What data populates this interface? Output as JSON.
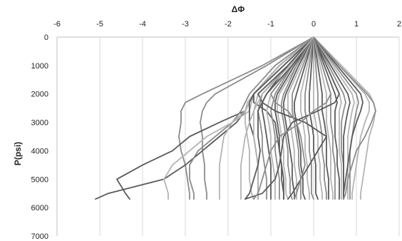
{
  "chart_data": {
    "type": "line",
    "title": "",
    "xlabel": "ΔΦ",
    "ylabel": "P(psi)",
    "x_axis_position": "top",
    "y_axis_inverted": true,
    "xlim": [
      -6,
      2
    ],
    "ylim": [
      0,
      7000
    ],
    "xticks": [
      "-6",
      "-5",
      "-4",
      "-3",
      "-2",
      "-1",
      "0",
      "1",
      "2"
    ],
    "yticks": [
      "0",
      "1000",
      "2000",
      "3000",
      "4000",
      "5000",
      "6000",
      "7000"
    ],
    "grid": "vertical",
    "legend": "none",
    "colors": {
      "dark": "#5a5a5a",
      "mid": "#8c8c8c",
      "light": "#b4b4b4",
      "grid": "#d9d9d9"
    },
    "y_samples": [
      0,
      1000,
      2000,
      2300,
      2600,
      3000,
      3500,
      4000,
      4500,
      5000,
      5500,
      5700
    ],
    "series": [
      {
        "shade": "mid",
        "x": [
          0,
          -1.2,
          -2.6,
          -3.0,
          -3.1,
          -3.1,
          -3.15,
          -3.1,
          -3.0,
          -2.95,
          -2.9,
          -2.9
        ]
      },
      {
        "shade": "mid",
        "x": [
          0,
          -1.1,
          -2.3,
          -2.5,
          -2.6,
          -2.65,
          -2.6,
          -2.6,
          -2.55,
          -2.55,
          -2.5,
          -2.5
        ]
      },
      {
        "shade": "dark",
        "x": [
          0,
          -0.8,
          -1.4,
          -1.5,
          -1.6,
          -2.2,
          -2.9,
          -3.3,
          -4.0,
          -4.6,
          -4.4,
          -4.3
        ]
      },
      {
        "shade": "dark",
        "x": [
          0,
          -0.8,
          -1.4,
          -1.5,
          -1.6,
          -1.8,
          -2.2,
          -2.6,
          -3.0,
          -3.5,
          -4.8,
          -5.1
        ]
      },
      {
        "shade": "mid",
        "x": [
          0,
          -0.9,
          -1.5,
          -1.6,
          -1.7,
          -1.9,
          -2.3,
          -2.7,
          -2.9,
          -2.9,
          -2.8,
          -2.8
        ]
      },
      {
        "shade": "light",
        "x": [
          0,
          -0.8,
          -1.4,
          -1.45,
          -1.5,
          -1.9,
          -2.1,
          -2.15,
          -2.2,
          -2.2,
          -2.2,
          -2.2
        ]
      },
      {
        "shade": "light",
        "x": [
          0,
          -0.7,
          -1.4,
          -1.5,
          -1.6,
          -1.9,
          -2.5,
          -2.9,
          -3.3,
          -3.5,
          -3.4,
          -3.4
        ]
      },
      {
        "shade": "dark",
        "x": [
          0,
          -0.7,
          -1.4,
          -1.4,
          -1.1,
          -0.9,
          -0.85,
          -0.8,
          -0.75,
          -0.7,
          -0.7,
          -0.7
        ]
      },
      {
        "shade": "light",
        "x": [
          0,
          -0.7,
          -1.4,
          -1.55,
          -1.6,
          -1.6,
          -1.55,
          -1.5,
          -1.5,
          -1.5,
          -1.45,
          -1.4
        ]
      },
      {
        "shade": "dark",
        "x": [
          0,
          -0.7,
          -1.4,
          -1.5,
          -1.5,
          -1.5,
          -1.4,
          -1.35,
          -1.3,
          -1.3,
          -1.3,
          -1.3
        ]
      },
      {
        "shade": "light",
        "x": [
          0,
          -0.6,
          -1.3,
          -1.35,
          -1.4,
          -1.4,
          -1.4,
          -1.35,
          -1.3,
          -1.3,
          -1.3,
          -1.3
        ]
      },
      {
        "shade": "mid",
        "x": [
          0,
          -0.6,
          -1.2,
          -1.25,
          -1.3,
          -1.25,
          -1.2,
          -1.2,
          -1.15,
          -1.1,
          -1.1,
          -1.1
        ]
      },
      {
        "shade": "dark",
        "x": [
          0,
          -0.6,
          -1.1,
          -1.2,
          -1.2,
          -1.15,
          -1.1,
          -1.05,
          -1.0,
          -1.0,
          -1.0,
          -1.0
        ]
      },
      {
        "shade": "light",
        "x": [
          0,
          -0.5,
          -1.0,
          -1.05,
          -1.1,
          -1.05,
          -1.0,
          -1.0,
          -0.95,
          -0.9,
          -0.9,
          -0.9
        ]
      },
      {
        "shade": "mid",
        "x": [
          0,
          -0.5,
          -0.9,
          -0.95,
          -1.0,
          -0.95,
          -0.9,
          -0.9,
          -0.85,
          -0.8,
          -0.8,
          -0.8
        ]
      },
      {
        "shade": "dark",
        "x": [
          0,
          -0.45,
          -0.85,
          -0.9,
          -0.9,
          -0.85,
          -0.8,
          -0.8,
          -0.75,
          -0.75,
          -0.7,
          -0.7
        ]
      },
      {
        "shade": "light",
        "x": [
          0,
          -0.4,
          -0.8,
          -0.85,
          -0.85,
          -0.8,
          -0.75,
          -0.7,
          -0.7,
          -0.65,
          -0.65,
          -0.6
        ]
      },
      {
        "shade": "mid",
        "x": [
          0,
          -0.4,
          -0.7,
          -0.75,
          -0.75,
          -0.7,
          -0.65,
          -0.6,
          -0.6,
          -0.55,
          -0.55,
          -0.5
        ]
      },
      {
        "shade": "dark",
        "x": [
          0,
          -0.35,
          -0.65,
          -0.7,
          -0.7,
          -0.65,
          -0.6,
          -0.55,
          -0.5,
          -0.5,
          -0.45,
          -0.45
        ]
      },
      {
        "shade": "light",
        "x": [
          0,
          -0.3,
          -0.6,
          -0.6,
          -0.6,
          -0.55,
          -0.5,
          -0.45,
          -0.45,
          -0.4,
          -0.4,
          -0.4
        ]
      },
      {
        "shade": "mid",
        "x": [
          0,
          -0.25,
          -0.5,
          -0.5,
          -0.5,
          -0.45,
          -0.4,
          -0.35,
          -0.35,
          -0.3,
          -0.3,
          -0.3
        ]
      },
      {
        "shade": "dark",
        "x": [
          0,
          -0.2,
          -0.4,
          -0.45,
          -0.45,
          -0.4,
          -0.35,
          -0.3,
          -0.3,
          -0.25,
          -0.25,
          -0.2
        ]
      },
      {
        "shade": "light",
        "x": [
          0,
          -0.15,
          -0.3,
          -0.3,
          -0.3,
          -0.25,
          -0.2,
          -0.2,
          -0.15,
          -0.15,
          -0.1,
          -0.1
        ]
      },
      {
        "shade": "mid",
        "x": [
          0,
          -0.1,
          -0.2,
          -0.2,
          -0.2,
          -0.15,
          -0.1,
          -0.1,
          -0.05,
          -0.05,
          -0.05,
          0.0
        ]
      },
      {
        "shade": "dark",
        "x": [
          0,
          -0.05,
          -0.1,
          -0.1,
          -0.1,
          -0.05,
          0.0,
          0.0,
          0.05,
          0.05,
          0.05,
          0.1
        ]
      },
      {
        "shade": "light",
        "x": [
          0,
          0.0,
          0.0,
          0.0,
          0.0,
          0.05,
          0.1,
          0.1,
          0.15,
          0.15,
          0.2,
          0.2
        ]
      },
      {
        "shade": "mid",
        "x": [
          0,
          0.05,
          0.1,
          0.1,
          0.1,
          0.15,
          0.2,
          0.2,
          0.25,
          0.25,
          0.3,
          0.3
        ]
      },
      {
        "shade": "dark",
        "x": [
          0,
          0.1,
          0.2,
          0.2,
          0.2,
          0.25,
          0.3,
          0.3,
          0.3,
          0.35,
          0.35,
          0.35
        ]
      },
      {
        "shade": "light",
        "x": [
          0,
          0.15,
          0.3,
          0.3,
          0.3,
          0.3,
          0.35,
          0.4,
          0.4,
          0.4,
          0.45,
          0.45
        ]
      },
      {
        "shade": "mid",
        "x": [
          0,
          0.2,
          0.4,
          0.4,
          0.4,
          0.4,
          0.45,
          0.45,
          0.5,
          0.5,
          0.5,
          0.5
        ]
      },
      {
        "shade": "dark",
        "x": [
          0,
          0.25,
          0.5,
          0.55,
          0.5,
          0.5,
          0.5,
          0.55,
          0.55,
          0.6,
          0.6,
          0.6
        ]
      },
      {
        "shade": "light",
        "x": [
          0,
          0.3,
          0.6,
          0.65,
          0.6,
          0.6,
          0.6,
          0.6,
          0.65,
          0.65,
          0.65,
          0.65
        ]
      },
      {
        "shade": "mid",
        "x": [
          0,
          0.35,
          0.7,
          0.75,
          0.7,
          0.65,
          0.65,
          0.65,
          0.7,
          0.7,
          0.7,
          0.7
        ]
      },
      {
        "shade": "dark",
        "x": [
          0,
          0.4,
          0.8,
          0.85,
          0.8,
          0.75,
          0.7,
          0.7,
          0.7,
          0.7,
          0.7,
          0.7
        ]
      },
      {
        "shade": "light",
        "x": [
          0,
          0.45,
          0.9,
          0.95,
          0.9,
          0.85,
          0.8,
          0.8,
          0.8,
          0.8,
          0.8,
          0.8
        ]
      },
      {
        "shade": "mid",
        "x": [
          0,
          0.5,
          1.0,
          1.05,
          1.0,
          0.95,
          0.9,
          0.85,
          0.85,
          0.85,
          0.85,
          0.85
        ]
      },
      {
        "shade": "dark",
        "x": [
          0,
          0.55,
          1.1,
          1.15,
          1.1,
          1.0,
          0.9,
          0.85,
          0.8,
          0.75,
          0.7,
          0.7
        ]
      },
      {
        "shade": "light",
        "x": [
          0,
          0.6,
          1.2,
          1.3,
          1.3,
          1.2,
          1.1,
          1.05,
          1.0,
          0.95,
          0.9,
          0.9
        ]
      },
      {
        "shade": "light",
        "x": [
          0,
          0.65,
          1.3,
          1.4,
          1.45,
          1.4,
          1.3,
          1.25,
          1.2,
          1.15,
          1.1,
          1.1
        ]
      },
      {
        "shade": "mid",
        "x": [
          0,
          0.6,
          1.25,
          1.4,
          1.45,
          1.35,
          1.2,
          1.0,
          0.9,
          0.8,
          0.75,
          0.7
        ]
      },
      {
        "shade": "dark",
        "x": [
          0,
          -0.6,
          -1.3,
          -1.2,
          -0.9,
          -0.2,
          0.3,
          0.1,
          -0.1,
          -0.3,
          -0.5,
          -0.6
        ]
      },
      {
        "shade": "mid",
        "x": [
          0,
          -0.5,
          -1.0,
          -0.9,
          -0.6,
          -0.4,
          -0.3,
          -0.25,
          -0.2,
          -0.3,
          -0.4,
          -0.45
        ]
      },
      {
        "shade": "dark",
        "x": [
          0,
          -0.5,
          -1.1,
          -1.2,
          -1.3,
          -1.3,
          -1.3,
          -1.25,
          -1.3,
          -1.4,
          -1.5,
          -1.6
        ]
      },
      {
        "shade": "light",
        "x": [
          0,
          -0.55,
          -1.2,
          -1.3,
          -1.4,
          -1.5,
          -1.6,
          -1.65,
          -1.7,
          -1.7,
          -1.7,
          -1.7
        ]
      },
      {
        "shade": "dark",
        "x": [
          0,
          0.3,
          0.6,
          0.5,
          0.1,
          -0.5,
          -0.7,
          -0.75,
          -0.8,
          -0.9,
          -1.2,
          -1.6
        ]
      },
      {
        "shade": "mid",
        "x": [
          0,
          0.2,
          0.4,
          0.3,
          0.0,
          -0.3,
          -0.8,
          -1.0,
          -1.1,
          -1.2,
          -1.3,
          -1.4
        ]
      }
    ]
  }
}
